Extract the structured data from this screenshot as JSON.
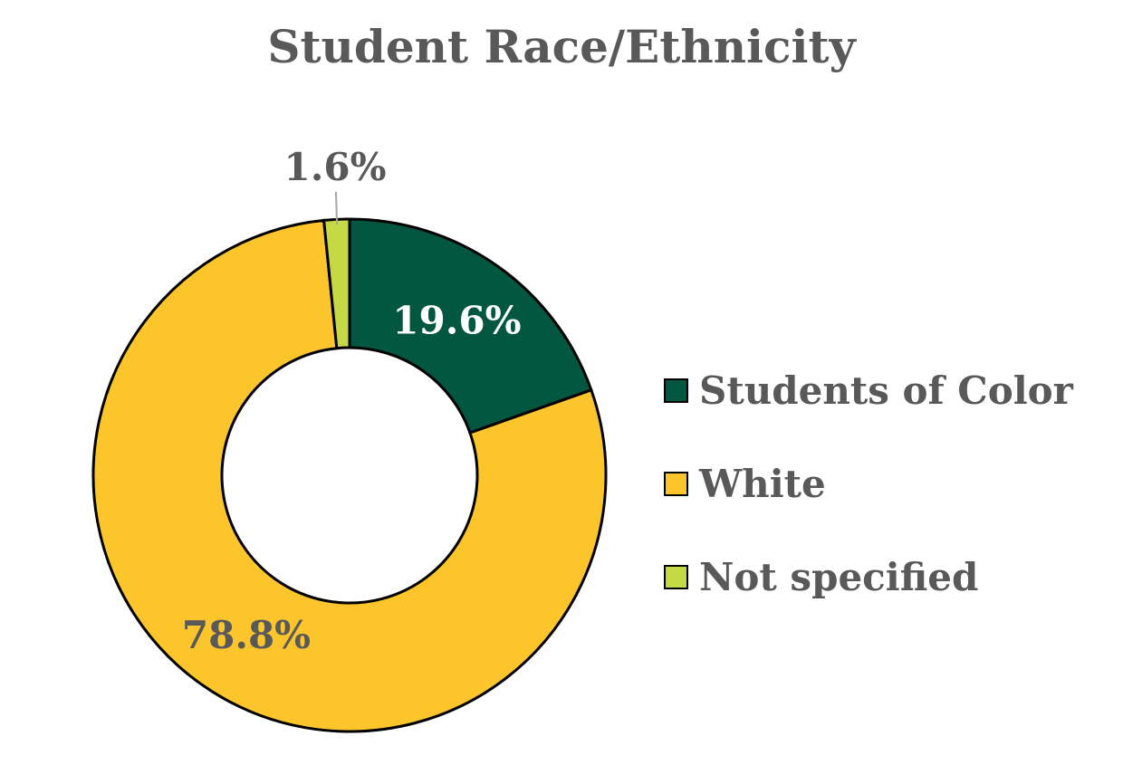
{
  "chart_data": {
    "type": "pie",
    "style": "donut",
    "title": "Student Race/Ethnicity",
    "slices": [
      {
        "name": "Students of Color",
        "value": 19.6,
        "label": "19.6%",
        "color": "#03563f"
      },
      {
        "name": "White",
        "value": 78.8,
        "label": "78.8%",
        "color": "#fdc52c"
      },
      {
        "name": "Not specified",
        "value": 1.6,
        "label": "1.6%",
        "color": "#c4d944"
      }
    ],
    "legend_position": "right"
  }
}
